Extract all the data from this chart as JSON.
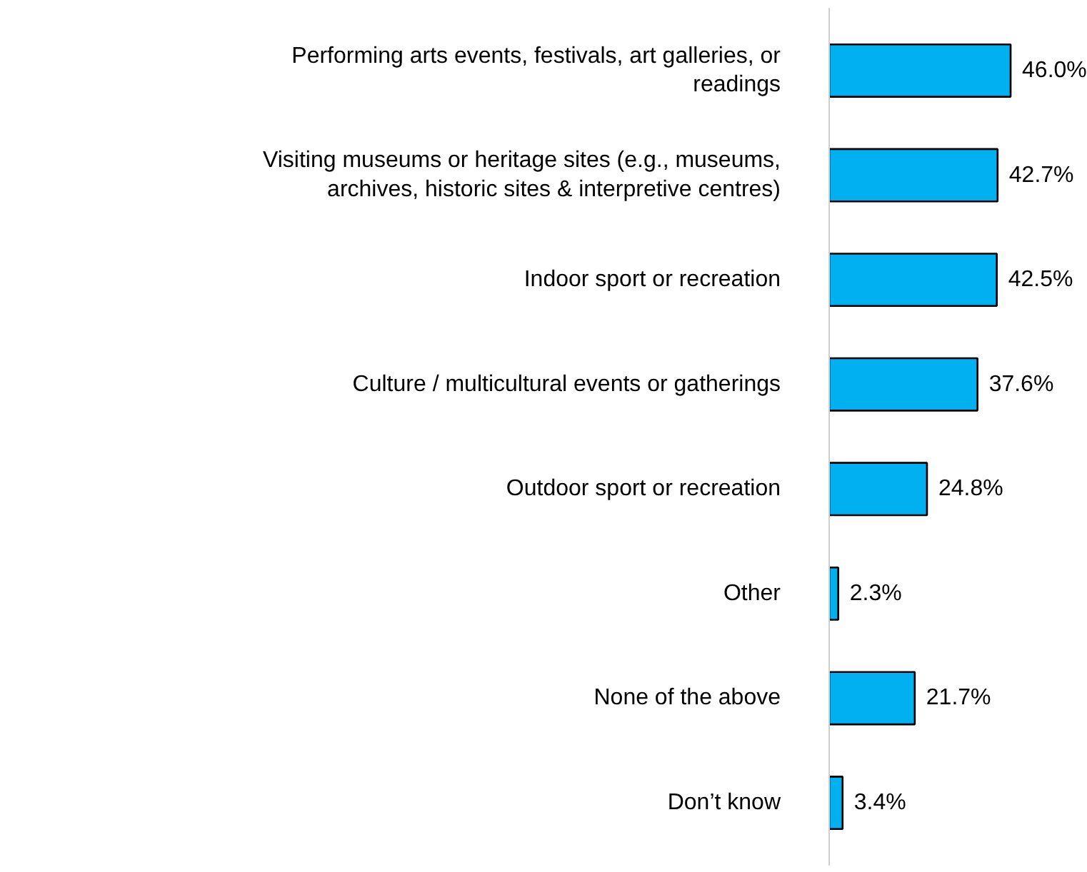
{
  "chart_data": {
    "type": "bar",
    "orientation": "horizontal",
    "categories": [
      "Performing arts events, festivals, art galleries, or readings",
      "Visiting museums or heritage sites (e.g., museums, archives, historic sites & interpretive centres)",
      "Indoor sport or recreation",
      "Culture / multicultural events or gatherings",
      "Outdoor sport or recreation",
      "Other",
      "None of the above",
      "Don’t know"
    ],
    "values": [
      46.0,
      42.7,
      42.5,
      37.6,
      24.8,
      2.3,
      21.7,
      3.4
    ],
    "value_labels": [
      "46.0%",
      "42.7%",
      "42.5%",
      "37.6%",
      "24.8%",
      "2.3%",
      "21.7%",
      "3.4%"
    ],
    "color": "#00b0f0"
  }
}
